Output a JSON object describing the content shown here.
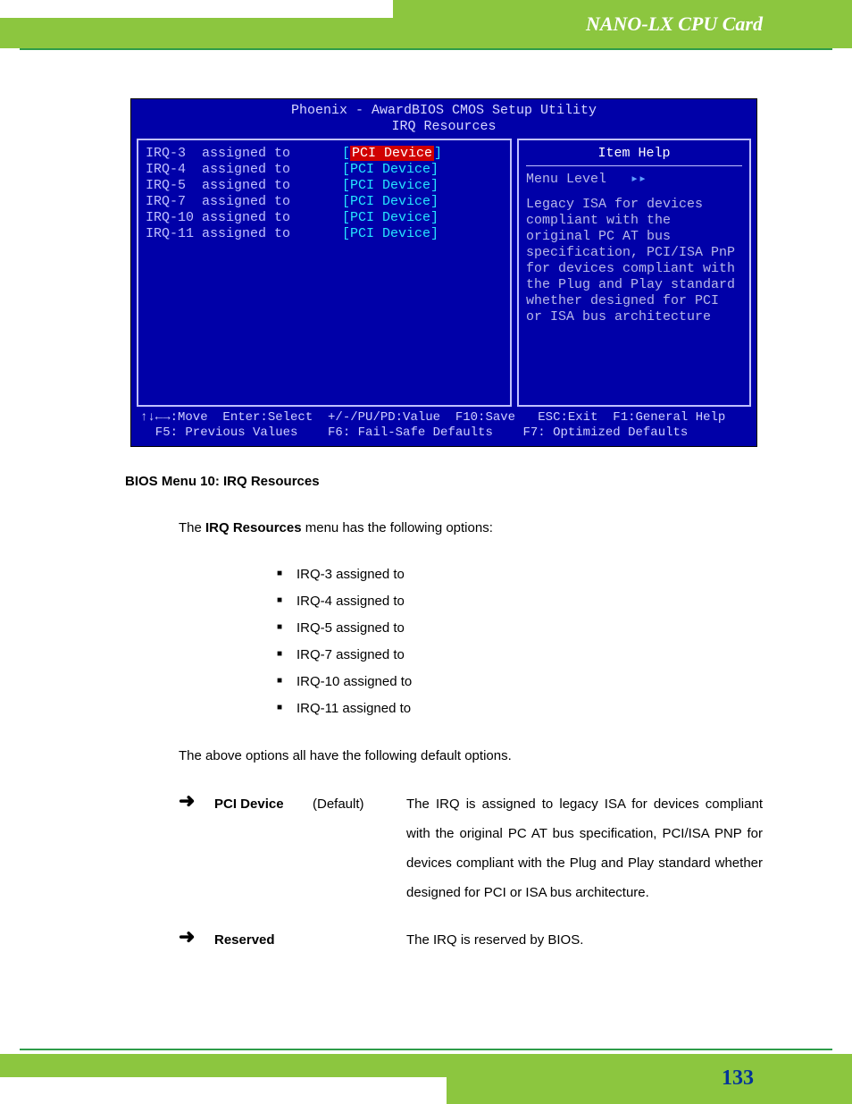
{
  "header": {
    "title": "NANO-LX CPU Card"
  },
  "footer": {
    "page": "133"
  },
  "bios": {
    "title_line1": "Phoenix - AwardBIOS CMOS Setup Utility",
    "title_line2": "IRQ Resources",
    "irq_rows": [
      {
        "label": "IRQ-3  assigned to",
        "value": "PCI Device",
        "selected": true
      },
      {
        "label": "IRQ-4  assigned to",
        "value": "PCI Device",
        "selected": false
      },
      {
        "label": "IRQ-5  assigned to",
        "value": "PCI Device",
        "selected": false
      },
      {
        "label": "IRQ-7  assigned to",
        "value": "PCI Device",
        "selected": false
      },
      {
        "label": "IRQ-10 assigned to",
        "value": "PCI Device",
        "selected": false
      },
      {
        "label": "IRQ-11 assigned to",
        "value": "PCI Device",
        "selected": false
      }
    ],
    "help_header": "Item Help",
    "menu_level": "Menu Level",
    "menu_arrows": "▸▸",
    "help_text": "Legacy ISA for devices compliant with the original PC AT bus specification, PCI/ISA PnP for devices compliant with the Plug and Play standard whether designed for PCI or ISA bus architecture",
    "footer_line1": "↑↓←→:Move  Enter:Select  +/-/PU/PD:Value  F10:Save   ESC:Exit  F1:General Help",
    "footer_line2": "  F5: Previous Values    F6: Fail-Safe Defaults    F7: Optimized Defaults",
    "colors": {
      "bg": "#0000a8",
      "border": "#c0c0ff",
      "text": "#c0c0ff",
      "value": "#26e6ff",
      "highlight_bg": "#d00000",
      "highlight_fg": "#ffffff"
    }
  },
  "caption": "BIOS Menu 10: IRQ Resources",
  "intro_prefix": "The ",
  "intro_bold": "IRQ Resources",
  "intro_suffix": " menu has the following options:",
  "option_list": [
    "IRQ-3 assigned to",
    "IRQ-4 assigned to",
    "IRQ-5 assigned to",
    "IRQ-7 assigned to",
    "IRQ-10 assigned to",
    "IRQ-11 assigned to"
  ],
  "after_list": "The above options all have the following default options.",
  "options": [
    {
      "arrow": "➜",
      "name": "PCI Device",
      "default": "(Default)",
      "desc": "The IRQ is assigned to legacy ISA for devices compliant with the original PC AT bus specification, PCI/ISA PNP for devices compliant with the Plug and Play standard whether designed for PCI or ISA bus architecture."
    },
    {
      "arrow": "➜",
      "name": "Reserved",
      "default": "",
      "desc": "The IRQ is reserved by BIOS."
    }
  ]
}
